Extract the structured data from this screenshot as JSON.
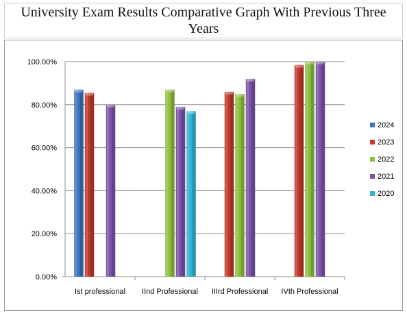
{
  "chart_data": {
    "type": "bar",
    "title": "University Exam Results Comparative Graph With Previous Three Years",
    "categories": [
      "Ist professional",
      "IInd Professional",
      "IIIrd Professional",
      "IVth Professional"
    ],
    "series": [
      {
        "name": "2024",
        "color": "#3a73c0",
        "values": [
          87,
          null,
          null,
          null
        ]
      },
      {
        "name": "2023",
        "color": "#c0392b",
        "values": [
          85.5,
          null,
          86,
          98.5
        ]
      },
      {
        "name": "2022",
        "color": "#8cbf3f",
        "values": [
          null,
          87,
          85,
          100
        ]
      },
      {
        "name": "2021",
        "color": "#7b52a8",
        "values": [
          80,
          79,
          92,
          100
        ]
      },
      {
        "name": "2020",
        "color": "#2fb3cf",
        "values": [
          null,
          77,
          null,
          null
        ]
      }
    ],
    "ylim": [
      0,
      100
    ],
    "y_ticks": [
      "0.00%",
      "20.00%",
      "40.00%",
      "60.00%",
      "80.00%",
      "100.00%"
    ],
    "grid": true,
    "legend": "right"
  }
}
